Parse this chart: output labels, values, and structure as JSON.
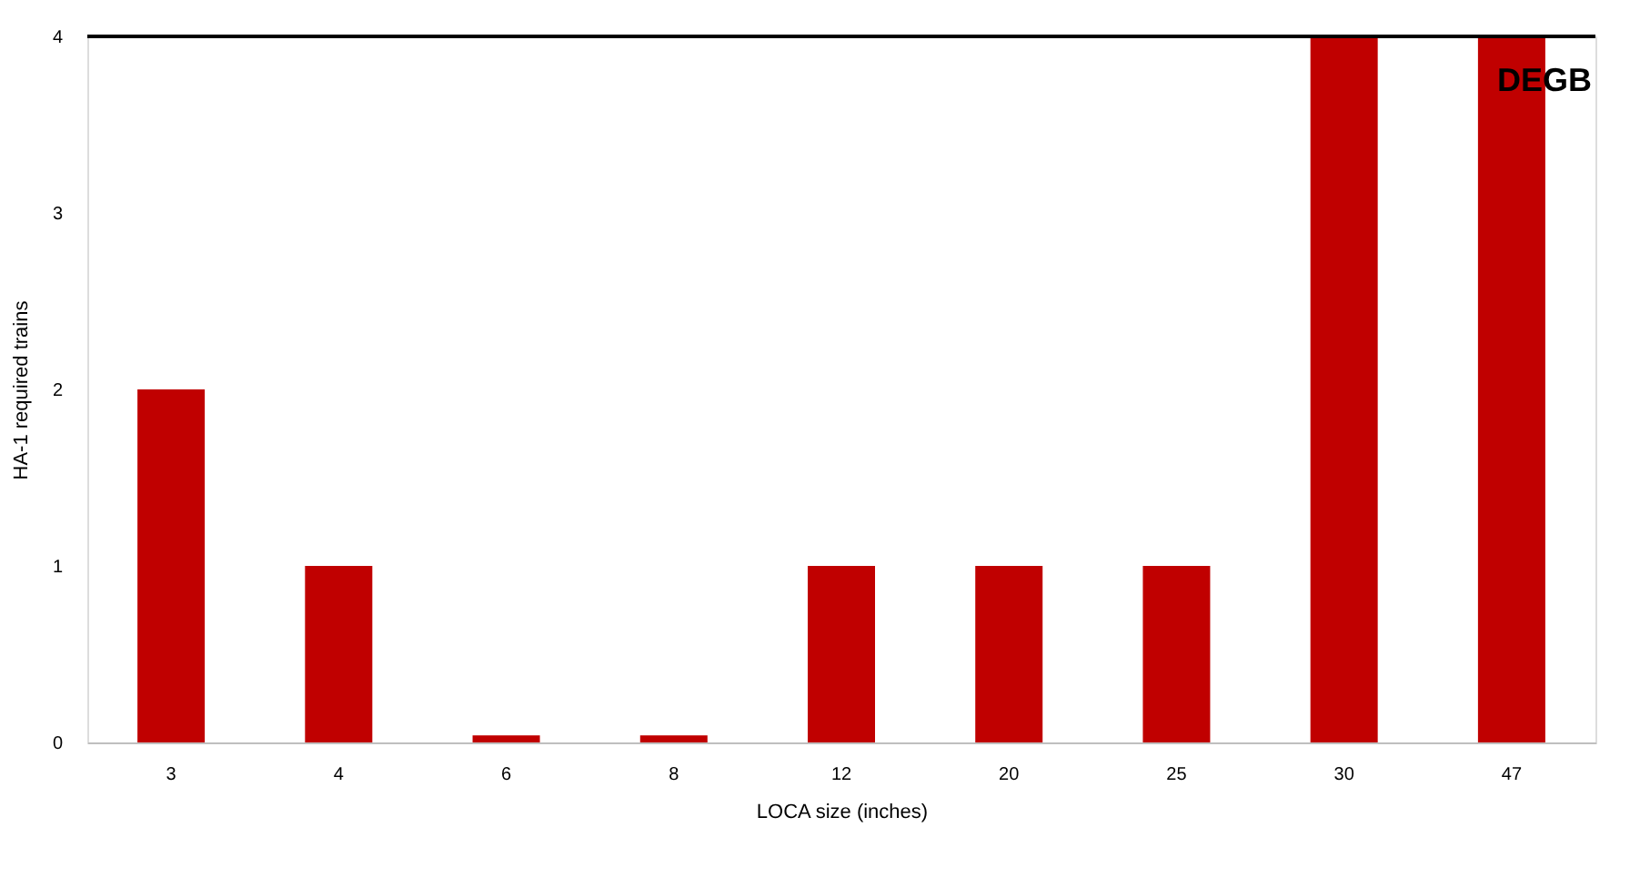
{
  "chart_data": {
    "type": "bar",
    "xlabel": "LOCA size (inches)",
    "ylabel": "HA-1 required trains",
    "categories": [
      "3",
      "4",
      "6",
      "8",
      "12",
      "20",
      "25",
      "30",
      "47"
    ],
    "values": [
      2,
      1,
      0.04,
      0.04,
      1,
      1,
      1,
      4,
      4
    ],
    "color": "#c00000",
    "ylim": [
      0,
      4
    ],
    "yticks": [
      0,
      1,
      2,
      3,
      4
    ],
    "grid": false,
    "ref_lines": [
      {
        "axis": "y",
        "value": 4,
        "label": "DEGB",
        "color": "#000000"
      }
    ]
  }
}
